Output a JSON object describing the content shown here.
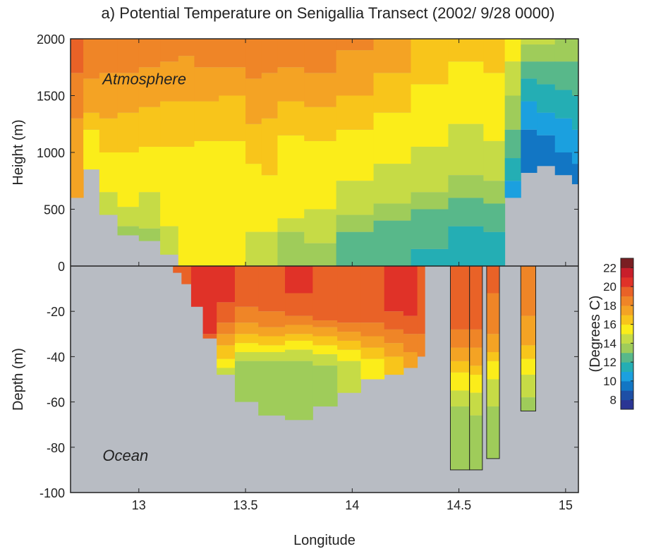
{
  "chart_data": {
    "type": "heatmap",
    "title": "a) Potential Temperature on Senigallia Transect (2002/ 9/28 0000)",
    "xlabel": "Longitude",
    "xlim": [
      12.68,
      15.06
    ],
    "x_ticks": [
      "13",
      "13.5",
      "14",
      "14.5",
      "15"
    ],
    "x_tick_values": [
      13,
      13.5,
      14,
      14.5,
      15
    ],
    "atmosphere": {
      "ylabel": "Height (m)",
      "ylim": [
        0,
        2000
      ],
      "y_ticks": [
        "0",
        "500",
        "1000",
        "1500",
        "2000"
      ],
      "y_tick_values": [
        0,
        500,
        1000,
        1500,
        2000
      ],
      "label": "Atmosphere",
      "profiles": [
        {
          "lon": 12.7,
          "terrain": 600,
          "layers": [
            [
              1300,
              17
            ],
            [
              1700,
              18
            ],
            [
              2000,
              19
            ]
          ]
        },
        {
          "lon": 12.78,
          "terrain": 850,
          "layers": [
            [
              1200,
              15
            ],
            [
              1350,
              16
            ],
            [
              1650,
              17
            ],
            [
              2000,
              18
            ]
          ]
        },
        {
          "lon": 12.85,
          "terrain": 450,
          "layers": [
            [
              650,
              14
            ],
            [
              1000,
              15
            ],
            [
              1300,
              16
            ],
            [
              1700,
              17
            ],
            [
              2000,
              18
            ]
          ]
        },
        {
          "lon": 12.95,
          "terrain": 270,
          "layers": [
            [
              350,
              13
            ],
            [
              520,
              14
            ],
            [
              1000,
              15
            ],
            [
              1350,
              16
            ],
            [
              1700,
              17
            ],
            [
              2000,
              18
            ]
          ]
        },
        {
          "lon": 13.05,
          "terrain": 220,
          "layers": [
            [
              330,
              13
            ],
            [
              650,
              14
            ],
            [
              1050,
              15
            ],
            [
              1400,
              16
            ],
            [
              1750,
              17
            ],
            [
              2000,
              18
            ]
          ]
        },
        {
          "lon": 13.15,
          "terrain": 100,
          "layers": [
            [
              350,
              14
            ],
            [
              1050,
              15
            ],
            [
              1450,
              16
            ],
            [
              1800,
              17
            ],
            [
              2000,
              18
            ]
          ]
        },
        {
          "lon": 13.22,
          "terrain": 0,
          "layers": [
            [
              1050,
              15
            ],
            [
              1450,
              16
            ],
            [
              1850,
              17
            ],
            [
              2000,
              18
            ]
          ]
        },
        {
          "lon": 13.3,
          "terrain": 0,
          "layers": [
            [
              1100,
              15
            ],
            [
              1450,
              16
            ],
            [
              1750,
              17
            ],
            [
              2000,
              18
            ]
          ]
        },
        {
          "lon": 13.45,
          "terrain": 0,
          "layers": [
            [
              1100,
              15
            ],
            [
              1500,
              16
            ],
            [
              1750,
              17
            ],
            [
              2000,
              18
            ]
          ]
        },
        {
          "lon": 13.55,
          "terrain": 0,
          "layers": [
            [
              300,
              14
            ],
            [
              900,
              15
            ],
            [
              1250,
              16
            ],
            [
              1650,
              17
            ],
            [
              2000,
              18
            ]
          ]
        },
        {
          "lon": 13.6,
          "terrain": 0,
          "layers": [
            [
              300,
              14
            ],
            [
              800,
              15
            ],
            [
              1300,
              16
            ],
            [
              1700,
              17
            ],
            [
              2000,
              18
            ]
          ]
        },
        {
          "lon": 13.7,
          "terrain": 0,
          "layers": [
            [
              300,
              13
            ],
            [
              420,
              14
            ],
            [
              1150,
              15
            ],
            [
              1450,
              16
            ],
            [
              1750,
              17
            ],
            [
              2000,
              18
            ]
          ]
        },
        {
          "lon": 13.85,
          "terrain": 0,
          "layers": [
            [
              200,
              13
            ],
            [
              500,
              14
            ],
            [
              1100,
              15
            ],
            [
              1400,
              16
            ],
            [
              1700,
              17
            ],
            [
              2000,
              18
            ]
          ]
        },
        {
          "lon": 14.0,
          "terrain": 0,
          "layers": [
            [
              300,
              12
            ],
            [
              450,
              13
            ],
            [
              750,
              14
            ],
            [
              1200,
              15
            ],
            [
              1500,
              16
            ],
            [
              1900,
              17
            ],
            [
              2000,
              18
            ]
          ]
        },
        {
          "lon": 14.2,
          "terrain": 0,
          "layers": [
            [
              400,
              12
            ],
            [
              550,
              13
            ],
            [
              900,
              14
            ],
            [
              1350,
              15
            ],
            [
              1700,
              16
            ],
            [
              2000,
              17
            ]
          ]
        },
        {
          "lon": 14.35,
          "terrain": 0,
          "layers": [
            [
              150,
              11
            ],
            [
              500,
              12
            ],
            [
              650,
              13
            ],
            [
              1050,
              14
            ],
            [
              1600,
              15
            ],
            [
              2000,
              16
            ]
          ]
        },
        {
          "lon": 14.55,
          "terrain": 0,
          "layers": [
            [
              350,
              11
            ],
            [
              600,
              12
            ],
            [
              800,
              13
            ],
            [
              1250,
              14
            ],
            [
              1800,
              15
            ],
            [
              2000,
              16
            ]
          ]
        },
        {
          "lon": 14.68,
          "terrain": 0,
          "layers": [
            [
              300,
              11
            ],
            [
              550,
              12
            ],
            [
              750,
              13
            ],
            [
              1100,
              14
            ],
            [
              1700,
              15
            ],
            [
              2000,
              16
            ]
          ]
        },
        {
          "lon": 14.75,
          "terrain": 600,
          "layers": [
            [
              750,
              10
            ],
            [
              950,
              11
            ],
            [
              1200,
              12
            ],
            [
              1500,
              13
            ],
            [
              1800,
              14
            ],
            [
              2000,
              15
            ]
          ]
        },
        {
          "lon": 14.83,
          "terrain": 820,
          "layers": [
            [
              1200,
              9
            ],
            [
              1450,
              10
            ],
            [
              1650,
              11
            ],
            [
              1800,
              12
            ],
            [
              1950,
              13
            ],
            [
              2000,
              14
            ]
          ]
        },
        {
          "lon": 14.9,
          "terrain": 880,
          "layers": [
            [
              1150,
              9
            ],
            [
              1350,
              10
            ],
            [
              1600,
              11
            ],
            [
              1800,
              12
            ],
            [
              1950,
              13
            ],
            [
              2000,
              14
            ]
          ]
        },
        {
          "lon": 15.0,
          "terrain": 800,
          "layers": [
            [
              1000,
              9
            ],
            [
              1300,
              10
            ],
            [
              1550,
              11
            ],
            [
              1800,
              12
            ],
            [
              2000,
              13
            ]
          ]
        },
        {
          "lon": 15.06,
          "terrain": 720,
          "layers": [
            [
              900,
              9
            ],
            [
              1200,
              10
            ],
            [
              1500,
              11
            ],
            [
              1800,
              12
            ],
            [
              2000,
              13
            ]
          ]
        }
      ]
    },
    "ocean": {
      "ylabel": "Depth (m)",
      "ylim": [
        -100,
        0
      ],
      "y_ticks": [
        "0",
        "-20",
        "-40",
        "-60",
        "-80",
        "-100"
      ],
      "y_tick_values": [
        0,
        -20,
        -40,
        -60,
        -80,
        -100
      ],
      "label": "Ocean",
      "profiles": [
        {
          "lon": 13.18,
          "bottom": -3,
          "layers": [
            [
              -3,
              19
            ]
          ]
        },
        {
          "lon": 13.22,
          "bottom": -8,
          "layers": [
            [
              -8,
              19
            ]
          ]
        },
        {
          "lon": 13.27,
          "bottom": -18,
          "layers": [
            [
              -18,
              20
            ]
          ]
        },
        {
          "lon": 13.33,
          "bottom": -32,
          "layers": [
            [
              -30,
              20
            ],
            [
              -32,
              19
            ]
          ]
        },
        {
          "lon": 13.4,
          "bottom": -48,
          "layers": [
            [
              -16,
              20
            ],
            [
              -25,
              19
            ],
            [
              -30,
              18
            ],
            [
              -35,
              17
            ],
            [
              -41,
              16
            ],
            [
              -45,
              15
            ],
            [
              -48,
              14
            ]
          ]
        },
        {
          "lon": 13.5,
          "bottom": -60,
          "layers": [
            [
              -18,
              19
            ],
            [
              -25,
              18
            ],
            [
              -30,
              17
            ],
            [
              -34,
              16
            ],
            [
              -38,
              15
            ],
            [
              -42,
              14
            ],
            [
              -60,
              13
            ]
          ]
        },
        {
          "lon": 13.62,
          "bottom": -66,
          "layers": [
            [
              -20,
              19
            ],
            [
              -27,
              18
            ],
            [
              -31,
              17
            ],
            [
              -35,
              16
            ],
            [
              -38,
              15
            ],
            [
              -42,
              14
            ],
            [
              -66,
              13
            ]
          ]
        },
        {
          "lon": 13.75,
          "bottom": -68,
          "layers": [
            [
              -12,
              20
            ],
            [
              -22,
              19
            ],
            [
              -26,
              18
            ],
            [
              -30,
              17
            ],
            [
              -33,
              16
            ],
            [
              -37,
              15
            ],
            [
              -42,
              14
            ],
            [
              -68,
              13
            ]
          ]
        },
        {
          "lon": 13.88,
          "bottom": -62,
          "layers": [
            [
              -24,
              19
            ],
            [
              -27,
              18
            ],
            [
              -31,
              17
            ],
            [
              -35,
              16
            ],
            [
              -39,
              15
            ],
            [
              -44,
              14
            ],
            [
              -62,
              13
            ]
          ]
        },
        {
          "lon": 13.98,
          "bottom": -56,
          "layers": [
            [
              -25,
              19
            ],
            [
              -29,
              18
            ],
            [
              -33,
              17
            ],
            [
              -37,
              16
            ],
            [
              -42,
              15
            ],
            [
              -56,
              14
            ]
          ]
        },
        {
          "lon": 14.1,
          "bottom": -50,
          "layers": [
            [
              -25,
              19
            ],
            [
              -31,
              18
            ],
            [
              -36,
              17
            ],
            [
              -41,
              16
            ],
            [
              -50,
              15
            ]
          ]
        },
        {
          "lon": 14.2,
          "bottom": -48,
          "layers": [
            [
              -20,
              20
            ],
            [
              -28,
              19
            ],
            [
              -34,
              18
            ],
            [
              -40,
              17
            ],
            [
              -48,
              16
            ]
          ]
        },
        {
          "lon": 14.28,
          "bottom": -45,
          "layers": [
            [
              -22,
              20
            ],
            [
              -30,
              19
            ],
            [
              -38,
              18
            ],
            [
              -45,
              17
            ]
          ]
        },
        {
          "lon": 14.33,
          "bottom": -40,
          "layers": [
            [
              -30,
              19
            ],
            [
              -40,
              18
            ]
          ]
        }
      ],
      "columns": [
        {
          "lon_start": 14.46,
          "lon_end": 14.55,
          "layers": [
            [
              -28,
              19
            ],
            [
              -36,
              18
            ],
            [
              -42,
              17
            ],
            [
              -47,
              16
            ],
            [
              -55,
              15
            ],
            [
              -62,
              14
            ],
            [
              -90,
              13
            ]
          ]
        },
        {
          "lon_start": 14.55,
          "lon_end": 14.61,
          "layers": [
            [
              -28,
              19
            ],
            [
              -36,
              18
            ],
            [
              -44,
              17
            ],
            [
              -48,
              16
            ],
            [
              -56,
              15
            ],
            [
              -66,
              14
            ],
            [
              -90,
              13
            ]
          ]
        },
        {
          "lon_start": 14.63,
          "lon_end": 14.69,
          "layers": [
            [
              -12,
              19
            ],
            [
              -30,
              18
            ],
            [
              -38,
              17
            ],
            [
              -42,
              16
            ],
            [
              -50,
              15
            ],
            [
              -62,
              14
            ],
            [
              -85,
              13
            ]
          ]
        },
        {
          "lon_start": 14.79,
          "lon_end": 14.86,
          "layers": [
            [
              -22,
              18
            ],
            [
              -35,
              17
            ],
            [
              -41,
              16
            ],
            [
              -48,
              15
            ],
            [
              -58,
              14
            ],
            [
              -64,
              13
            ]
          ]
        }
      ]
    },
    "colorbar": {
      "label": "(Degrees C)",
      "range": [
        7,
        23
      ],
      "ticks": [
        "8",
        "10",
        "12",
        "14",
        "16",
        "18",
        "20",
        "22"
      ],
      "tick_values": [
        8,
        10,
        12,
        14,
        16,
        18,
        20,
        22
      ],
      "colors": [
        "#2b3594",
        "#1d4fa6",
        "#1276c4",
        "#1ba0df",
        "#24aeb4",
        "#58b88a",
        "#9fcc5a",
        "#c6db46",
        "#fbed1a",
        "#f8c51b",
        "#f4a324",
        "#ef8527",
        "#e96227",
        "#e03228",
        "#c81e2a",
        "#7a1e22"
      ]
    },
    "terrain_color": "#b8bcc3"
  }
}
